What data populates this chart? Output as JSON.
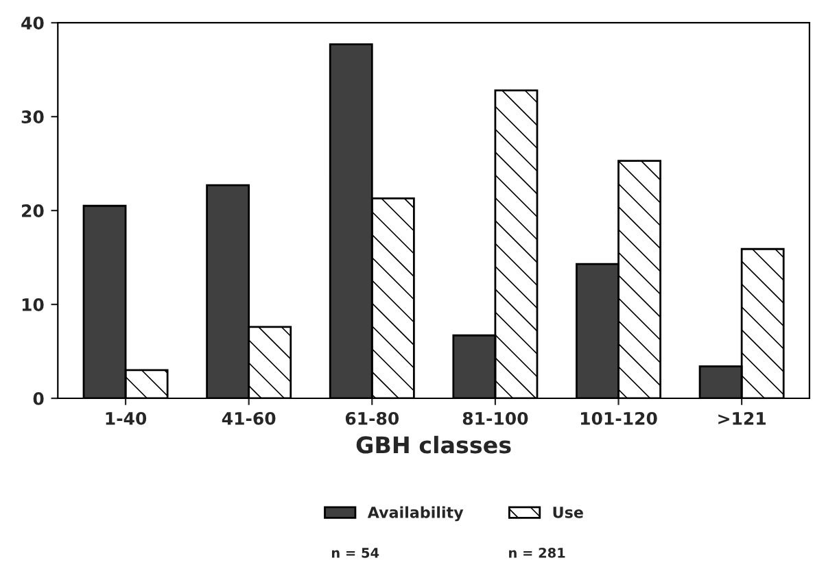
{
  "chart_data": {
    "type": "bar",
    "xlabel": "GBH classes",
    "categories": [
      "1-40",
      "41-60",
      "61-80",
      "81-100",
      "101-120",
      ">121"
    ],
    "series": [
      {
        "name": "Availability",
        "color": "#404040",
        "values": [
          20.5,
          22.7,
          37.7,
          6.7,
          14.3,
          3.4
        ]
      },
      {
        "name": "Use",
        "color": "#000000",
        "values": [
          3.0,
          7.6,
          21.3,
          32.8,
          25.3,
          15.9
        ]
      }
    ],
    "ylim": [
      0,
      40
    ],
    "yticks": [
      0,
      10,
      20,
      30,
      40
    ],
    "grid": false,
    "legend": "bottom",
    "annotations": [
      "n = 54",
      "n = 281"
    ]
  }
}
